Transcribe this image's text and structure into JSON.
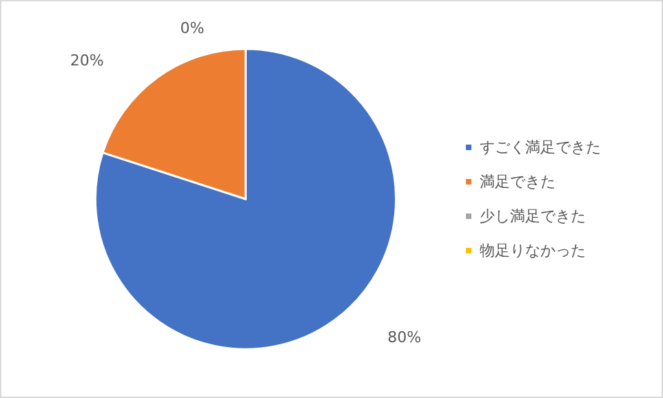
{
  "chart_data": {
    "type": "pie",
    "categories": [
      "すごく満足できた",
      "満足できた",
      "少し満足できた",
      "物足りなかった"
    ],
    "values": [
      80,
      20,
      0,
      0
    ],
    "colors": [
      "#4472c4",
      "#ed7d31",
      "#a5a5a5",
      "#ffc000"
    ],
    "value_labels": [
      "80%",
      "20%",
      "0%",
      null
    ],
    "legend": "right"
  }
}
